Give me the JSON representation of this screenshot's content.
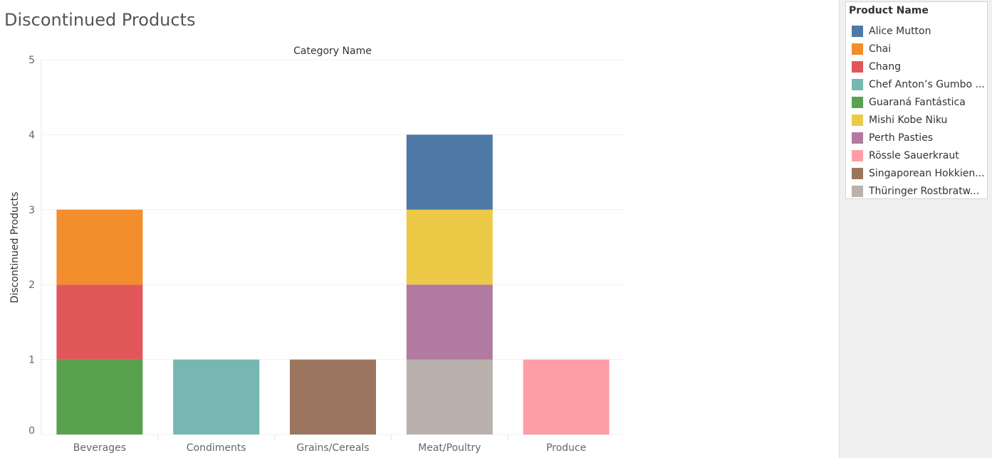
{
  "page": {
    "title": "Discontinued Products"
  },
  "colors": {
    "Alice Mutton": "#4e79a7",
    "Chai": "#f28e2b",
    "Chang": "#e15759",
    "Chef Anton's Gumbo": "#76b7b2",
    "Guaraná Fantástica": "#59a14f",
    "Mishi Kobe Niku": "#edc948",
    "Perth Pasties": "#b07aa1",
    "Rössle Sauerkraut": "#ff9da7",
    "Singaporean Hokkien": "#9c755f",
    "Thüringer Rostbratw": "#bab0ac",
    "gridline": "#f0f0f0"
  },
  "legend": {
    "title": "Product Name",
    "items": [
      {
        "label": "Alice Mutton",
        "color_key": "Alice Mutton"
      },
      {
        "label": "Chai",
        "color_key": "Chai"
      },
      {
        "label": "Chang",
        "color_key": "Chang"
      },
      {
        "label": "Chef Anton’s Gumbo ...",
        "color_key": "Chef Anton's Gumbo"
      },
      {
        "label": "Guaraná Fantástica",
        "color_key": "Guaraná Fantástica"
      },
      {
        "label": "Mishi Kobe Niku",
        "color_key": "Mishi Kobe Niku"
      },
      {
        "label": "Perth Pasties",
        "color_key": "Perth Pasties"
      },
      {
        "label": "Rössle Sauerkraut",
        "color_key": "Rössle Sauerkraut"
      },
      {
        "label": "Singaporean Hokkien...",
        "color_key": "Singaporean Hokkien"
      },
      {
        "label": "Thüringer Rostbratw...",
        "color_key": "Thüringer Rostbratw"
      }
    ]
  },
  "chart_data": {
    "type": "bar",
    "stacked": true,
    "xlabel": "Category Name",
    "ylabel": "Discontinued Products",
    "ylim": [
      0,
      5
    ],
    "yticks": [
      "0",
      "1",
      "2",
      "3",
      "4",
      "5"
    ],
    "grid": true,
    "categories": [
      "Beverages",
      "Condiments",
      "Grains/Cereals",
      "Meat/Poultry",
      "Produce"
    ],
    "series": [
      {
        "name": "Guaraná Fantástica",
        "color_key": "Guaraná Fantástica",
        "values": [
          1,
          0,
          0,
          0,
          0
        ]
      },
      {
        "name": "Chang",
        "color_key": "Chang",
        "values": [
          1,
          0,
          0,
          0,
          0
        ]
      },
      {
        "name": "Chai",
        "color_key": "Chai",
        "values": [
          1,
          0,
          0,
          0,
          0
        ]
      },
      {
        "name": "Chef Anton's Gumbo",
        "color_key": "Chef Anton's Gumbo",
        "values": [
          0,
          1,
          0,
          0,
          0
        ]
      },
      {
        "name": "Singaporean Hokkien",
        "color_key": "Singaporean Hokkien",
        "values": [
          0,
          0,
          1,
          0,
          0
        ]
      },
      {
        "name": "Thüringer Rostbratw",
        "color_key": "Thüringer Rostbratw",
        "values": [
          0,
          0,
          0,
          1,
          0
        ]
      },
      {
        "name": "Perth Pasties",
        "color_key": "Perth Pasties",
        "values": [
          0,
          0,
          0,
          1,
          0
        ]
      },
      {
        "name": "Mishi Kobe Niku",
        "color_key": "Mishi Kobe Niku",
        "values": [
          0,
          0,
          0,
          1,
          0
        ]
      },
      {
        "name": "Alice Mutton",
        "color_key": "Alice Mutton",
        "values": [
          0,
          0,
          0,
          1,
          0
        ]
      },
      {
        "name": "Rössle Sauerkraut",
        "color_key": "Rössle Sauerkraut",
        "values": [
          0,
          0,
          0,
          0,
          1
        ]
      }
    ]
  }
}
